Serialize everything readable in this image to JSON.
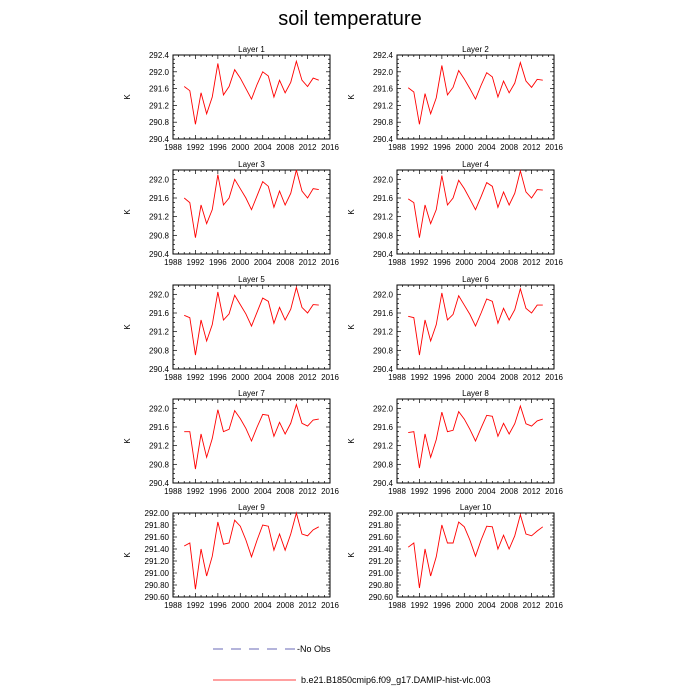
{
  "title": "soil temperature",
  "legend": {
    "items": [
      {
        "label": "No Obs",
        "color": "#3a3aa0",
        "style": "dashed"
      },
      {
        "label": "b.e21.B1850cmip6.f09_g17.DAMIP-hist-vlc.003",
        "color": "#ff0000",
        "style": "solid"
      }
    ]
  },
  "chart_data": [
    {
      "type": "line",
      "title": "Layer 1",
      "ylabel": "K",
      "xlim": [
        1988,
        2016
      ],
      "ylim": [
        290.4,
        292.4
      ],
      "xticks": [
        "1988",
        "1992",
        "1996",
        "2000",
        "2004",
        "2008",
        "2012",
        "2016"
      ],
      "yticks": [
        "290.4",
        "290.8",
        "291.2",
        "291.6",
        "292.0",
        "292.4"
      ],
      "x": [
        1990,
        1991,
        1992,
        1993,
        1994,
        1995,
        1996,
        1997,
        1998,
        1999,
        2000,
        2001,
        2002,
        2003,
        2004,
        2005,
        2006,
        2007,
        2008,
        2009,
        2010,
        2011,
        2012,
        2013,
        2014
      ],
      "series": [
        {
          "values": [
            291.65,
            291.55,
            290.75,
            291.5,
            291.0,
            291.4,
            292.2,
            291.45,
            291.65,
            292.05,
            291.85,
            291.6,
            291.35,
            291.7,
            292.0,
            291.9,
            291.4,
            291.8,
            291.5,
            291.75,
            292.25,
            291.8,
            291.65,
            291.85,
            291.8
          ],
          "color": "#ff0000"
        }
      ]
    },
    {
      "type": "line",
      "title": "Layer 2",
      "ylabel": "K",
      "xlim": [
        1988,
        2016
      ],
      "ylim": [
        290.4,
        292.4
      ],
      "xticks": [
        "1988",
        "1992",
        "1996",
        "2000",
        "2004",
        "2008",
        "2012",
        "2016"
      ],
      "yticks": [
        "290.4",
        "290.8",
        "291.2",
        "291.6",
        "292.0",
        "292.4"
      ],
      "x": [
        1990,
        1991,
        1992,
        1993,
        1994,
        1995,
        1996,
        1997,
        1998,
        1999,
        2000,
        2001,
        2002,
        2003,
        2004,
        2005,
        2006,
        2007,
        2008,
        2009,
        2010,
        2011,
        2012,
        2013,
        2014
      ],
      "series": [
        {
          "values": [
            291.62,
            291.52,
            290.75,
            291.48,
            291.0,
            291.38,
            292.15,
            291.45,
            291.63,
            292.03,
            291.83,
            291.6,
            291.35,
            291.68,
            291.98,
            291.88,
            291.4,
            291.78,
            291.5,
            291.73,
            292.22,
            291.78,
            291.63,
            291.82,
            291.8
          ],
          "color": "#ff0000"
        }
      ]
    },
    {
      "type": "line",
      "title": "Layer 3",
      "ylabel": "K",
      "xlim": [
        1988,
        2016
      ],
      "ylim": [
        290.4,
        292.2
      ],
      "xticks": [
        "1988",
        "1992",
        "1996",
        "2000",
        "2004",
        "2008",
        "2012",
        "2016"
      ],
      "yticks": [
        "290.4",
        "290.8",
        "291.2",
        "291.6",
        "292.0"
      ],
      "x": [
        1990,
        1991,
        1992,
        1993,
        1994,
        1995,
        1996,
        1997,
        1998,
        1999,
        2000,
        2001,
        2002,
        2003,
        2004,
        2005,
        2006,
        2007,
        2008,
        2009,
        2010,
        2011,
        2012,
        2013,
        2014
      ],
      "series": [
        {
          "values": [
            291.6,
            291.5,
            290.75,
            291.45,
            291.05,
            291.35,
            292.1,
            291.45,
            291.6,
            292.0,
            291.8,
            291.6,
            291.35,
            291.65,
            291.95,
            291.85,
            291.4,
            291.75,
            291.45,
            291.7,
            292.2,
            291.75,
            291.6,
            291.8,
            291.78
          ],
          "color": "#ff0000"
        }
      ]
    },
    {
      "type": "line",
      "title": "Layer 4",
      "ylabel": "K",
      "xlim": [
        1988,
        2016
      ],
      "ylim": [
        290.4,
        292.2
      ],
      "xticks": [
        "1988",
        "1992",
        "1996",
        "2000",
        "2004",
        "2008",
        "2012",
        "2016"
      ],
      "yticks": [
        "290.4",
        "290.8",
        "291.2",
        "291.6",
        "292.0"
      ],
      "x": [
        1990,
        1991,
        1992,
        1993,
        1994,
        1995,
        1996,
        1997,
        1998,
        1999,
        2000,
        2001,
        2002,
        2003,
        2004,
        2005,
        2006,
        2007,
        2008,
        2009,
        2010,
        2011,
        2012,
        2013,
        2014
      ],
      "series": [
        {
          "values": [
            291.58,
            291.5,
            290.75,
            291.45,
            291.05,
            291.35,
            292.08,
            291.45,
            291.6,
            291.98,
            291.8,
            291.58,
            291.35,
            291.63,
            291.93,
            291.85,
            291.4,
            291.73,
            291.45,
            291.7,
            292.18,
            291.73,
            291.6,
            291.78,
            291.77
          ],
          "color": "#ff0000"
        }
      ]
    },
    {
      "type": "line",
      "title": "Layer 5",
      "ylabel": "K",
      "xlim": [
        1988,
        2016
      ],
      "ylim": [
        290.4,
        292.2
      ],
      "xticks": [
        "1988",
        "1992",
        "1996",
        "2000",
        "2004",
        "2008",
        "2012",
        "2016"
      ],
      "yticks": [
        "290.4",
        "290.8",
        "291.2",
        "291.6",
        "292.0"
      ],
      "x": [
        1990,
        1991,
        1992,
        1993,
        1994,
        1995,
        1996,
        1997,
        1998,
        1999,
        2000,
        2001,
        2002,
        2003,
        2004,
        2005,
        2006,
        2007,
        2008,
        2009,
        2010,
        2011,
        2012,
        2013,
        2014
      ],
      "series": [
        {
          "values": [
            291.55,
            291.5,
            290.7,
            291.45,
            291.0,
            291.35,
            292.05,
            291.45,
            291.58,
            291.98,
            291.78,
            291.58,
            291.32,
            291.62,
            291.92,
            291.85,
            291.38,
            291.72,
            291.45,
            291.68,
            292.15,
            291.72,
            291.6,
            291.78,
            291.77
          ],
          "color": "#ff0000"
        }
      ]
    },
    {
      "type": "line",
      "title": "Layer 6",
      "ylabel": "K",
      "xlim": [
        1988,
        2016
      ],
      "ylim": [
        290.4,
        292.2
      ],
      "xticks": [
        "1988",
        "1992",
        "1996",
        "2000",
        "2004",
        "2008",
        "2012",
        "2016"
      ],
      "yticks": [
        "290.4",
        "290.8",
        "291.2",
        "291.6",
        "292.0"
      ],
      "x": [
        1990,
        1991,
        1992,
        1993,
        1994,
        1995,
        1996,
        1997,
        1998,
        1999,
        2000,
        2001,
        2002,
        2003,
        2004,
        2005,
        2006,
        2007,
        2008,
        2009,
        2010,
        2011,
        2012,
        2013,
        2014
      ],
      "series": [
        {
          "values": [
            291.53,
            291.5,
            290.7,
            291.45,
            291.0,
            291.35,
            292.03,
            291.45,
            291.57,
            291.97,
            291.77,
            291.57,
            291.32,
            291.6,
            291.9,
            291.85,
            291.38,
            291.7,
            291.45,
            291.67,
            292.12,
            291.7,
            291.6,
            291.77,
            291.77
          ],
          "color": "#ff0000"
        }
      ]
    },
    {
      "type": "line",
      "title": "Layer 7",
      "ylabel": "K",
      "xlim": [
        1988,
        2016
      ],
      "ylim": [
        290.4,
        292.2
      ],
      "xticks": [
        "1988",
        "1992",
        "1996",
        "2000",
        "2004",
        "2008",
        "2012",
        "2016"
      ],
      "yticks": [
        "290.4",
        "290.8",
        "291.2",
        "291.6",
        "292.0"
      ],
      "x": [
        1990,
        1991,
        1992,
        1993,
        1994,
        1995,
        1996,
        1997,
        1998,
        1999,
        2000,
        2001,
        2002,
        2003,
        2004,
        2005,
        2006,
        2007,
        2008,
        2009,
        2010,
        2011,
        2012,
        2013,
        2014
      ],
      "series": [
        {
          "values": [
            291.5,
            291.5,
            290.7,
            291.45,
            290.95,
            291.35,
            291.97,
            291.5,
            291.55,
            291.95,
            291.78,
            291.57,
            291.3,
            291.6,
            291.87,
            291.85,
            291.4,
            291.7,
            291.45,
            291.68,
            292.08,
            291.68,
            291.62,
            291.75,
            291.77
          ],
          "color": "#ff0000"
        }
      ]
    },
    {
      "type": "line",
      "title": "Layer 8",
      "ylabel": "K",
      "xlim": [
        1988,
        2016
      ],
      "ylim": [
        290.4,
        292.2
      ],
      "xticks": [
        "1988",
        "1992",
        "1996",
        "2000",
        "2004",
        "2008",
        "2012",
        "2016"
      ],
      "yticks": [
        "290.4",
        "290.8",
        "291.2",
        "291.6",
        "292.0"
      ],
      "x": [
        1990,
        1991,
        1992,
        1993,
        1994,
        1995,
        1996,
        1997,
        1998,
        1999,
        2000,
        2001,
        2002,
        2003,
        2004,
        2005,
        2006,
        2007,
        2008,
        2009,
        2010,
        2011,
        2012,
        2013,
        2014
      ],
      "series": [
        {
          "values": [
            291.48,
            291.5,
            290.72,
            291.45,
            290.95,
            291.33,
            291.92,
            291.5,
            291.53,
            291.93,
            291.77,
            291.55,
            291.3,
            291.58,
            291.85,
            291.83,
            291.4,
            291.68,
            291.45,
            291.67,
            292.05,
            291.67,
            291.62,
            291.73,
            291.77
          ],
          "color": "#ff0000"
        }
      ]
    },
    {
      "type": "line",
      "title": "Layer 9",
      "ylabel": "K",
      "xlim": [
        1988,
        2016
      ],
      "ylim": [
        290.6,
        292.0
      ],
      "xticks": [
        "1988",
        "1992",
        "1996",
        "2000",
        "2004",
        "2008",
        "2012",
        "2016"
      ],
      "yticks": [
        "290.60",
        "290.80",
        "291.00",
        "291.20",
        "291.40",
        "291.60",
        "291.80",
        "292.00"
      ],
      "x": [
        1990,
        1991,
        1992,
        1993,
        1994,
        1995,
        1996,
        1997,
        1998,
        1999,
        2000,
        2001,
        2002,
        2003,
        2004,
        2005,
        2006,
        2007,
        2008,
        2009,
        2010,
        2011,
        2012,
        2013,
        2014
      ],
      "series": [
        {
          "values": [
            291.45,
            291.5,
            290.73,
            291.4,
            290.95,
            291.28,
            291.85,
            291.48,
            291.5,
            291.88,
            291.78,
            291.55,
            291.27,
            291.55,
            291.8,
            291.78,
            291.38,
            291.65,
            291.38,
            291.65,
            292.0,
            291.65,
            291.62,
            291.72,
            291.77
          ],
          "color": "#ff0000"
        }
      ]
    },
    {
      "type": "line",
      "title": "Layer 10",
      "ylabel": "K",
      "xlim": [
        1988,
        2016
      ],
      "ylim": [
        290.6,
        292.0
      ],
      "xticks": [
        "1988",
        "1992",
        "1996",
        "2000",
        "2004",
        "2008",
        "2012",
        "2016"
      ],
      "yticks": [
        "290.60",
        "290.80",
        "291.00",
        "291.20",
        "291.40",
        "291.60",
        "291.80",
        "292.00"
      ],
      "x": [
        1990,
        1991,
        1992,
        1993,
        1994,
        1995,
        1996,
        1997,
        1998,
        1999,
        2000,
        2001,
        2002,
        2003,
        2004,
        2005,
        2006,
        2007,
        2008,
        2009,
        2010,
        2011,
        2012,
        2013,
        2014
      ],
      "series": [
        {
          "values": [
            291.43,
            291.5,
            290.75,
            291.4,
            290.95,
            291.27,
            291.8,
            291.5,
            291.5,
            291.85,
            291.77,
            291.55,
            291.28,
            291.55,
            291.78,
            291.77,
            291.4,
            291.63,
            291.4,
            291.62,
            291.97,
            291.65,
            291.62,
            291.7,
            291.77
          ],
          "color": "#ff0000"
        }
      ]
    }
  ]
}
